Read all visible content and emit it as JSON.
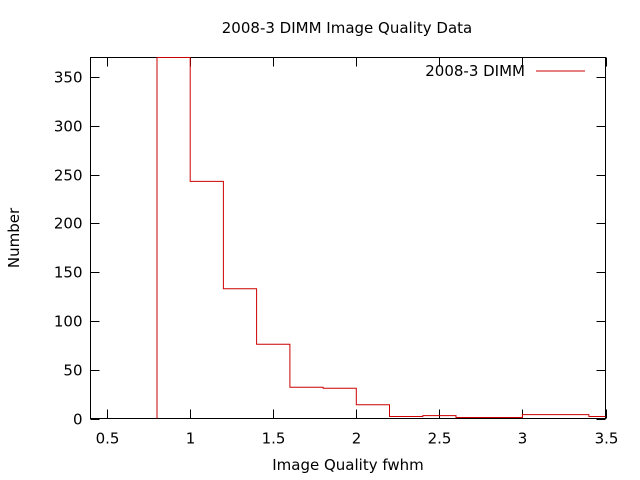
{
  "chart_data": {
    "type": "histogram-step",
    "title": "2008-3 DIMM Image Quality Data",
    "xlabel": "Image Quality fwhm",
    "ylabel": "Number",
    "xlim": [
      0.4,
      3.5
    ],
    "ylim": [
      0,
      370
    ],
    "xticks": [
      0.5,
      1,
      1.5,
      2,
      2.5,
      3,
      3.5
    ],
    "xtick_labels": [
      "0.5",
      "1",
      "1.5",
      "2",
      "2.5",
      "3",
      "3.5"
    ],
    "yticks": [
      0,
      50,
      100,
      150,
      200,
      250,
      300,
      350
    ],
    "ytick_labels": [
      "0",
      "50",
      "100",
      "150",
      "200",
      "250",
      "300",
      "350"
    ],
    "grid": false,
    "legend_position": "top-right",
    "series": [
      {
        "name": "2008-3 DIMM",
        "color": "#cc0000",
        "bin_edges": [
          0.8,
          1.0,
          1.2,
          1.4,
          1.6,
          1.8,
          2.0,
          2.2,
          2.4,
          2.6,
          2.8,
          3.0,
          3.2,
          3.4,
          3.5
        ],
        "counts": [
          370,
          243,
          133,
          76,
          32,
          31,
          14,
          2,
          3,
          1,
          1,
          4,
          4,
          2
        ]
      }
    ]
  }
}
